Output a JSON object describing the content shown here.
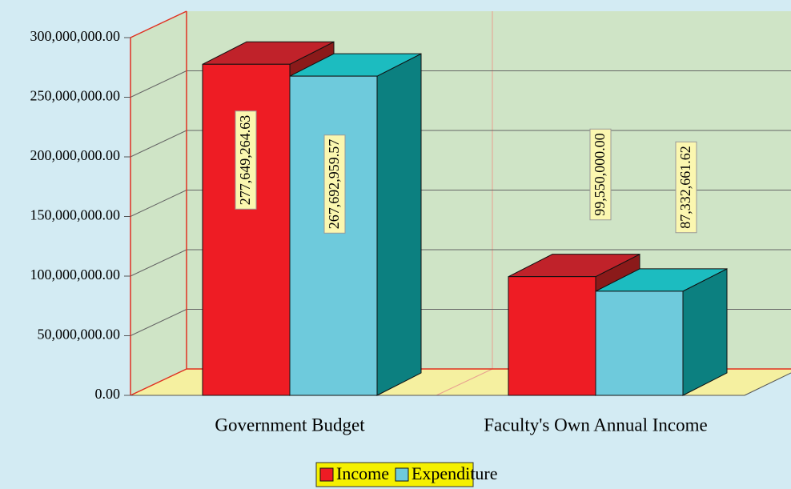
{
  "chart_data": {
    "type": "bar3d",
    "categories": [
      "Government Budget",
      "Faculty's Own Annual Income"
    ],
    "series": [
      {
        "name": "Income",
        "color": "#ee1c24",
        "values": [
          277649264.63,
          99550000.0
        ],
        "value_labels": [
          "277,649,264.63",
          "99,550,000.00"
        ]
      },
      {
        "name": "Expenditure",
        "color": "#6ecadc",
        "values": [
          267692959.57,
          87332661.62
        ],
        "value_labels": [
          "267,692,959.57",
          "87,332,661.62"
        ]
      }
    ],
    "ylim": [
      0,
      300000000
    ],
    "yticks": [
      {
        "value": 0,
        "label": "0.00"
      },
      {
        "value": 50000000,
        "label": "50,000,000.00"
      },
      {
        "value": 100000000,
        "label": "100,000,000.00"
      },
      {
        "value": 150000000,
        "label": "150,000,000.00"
      },
      {
        "value": 200000000,
        "label": "200,000,000.00"
      },
      {
        "value": 250000000,
        "label": "250,000,000.00"
      },
      {
        "value": 300000000,
        "label": "300,000,000.00"
      }
    ],
    "grid": true,
    "legend": "bottom"
  }
}
